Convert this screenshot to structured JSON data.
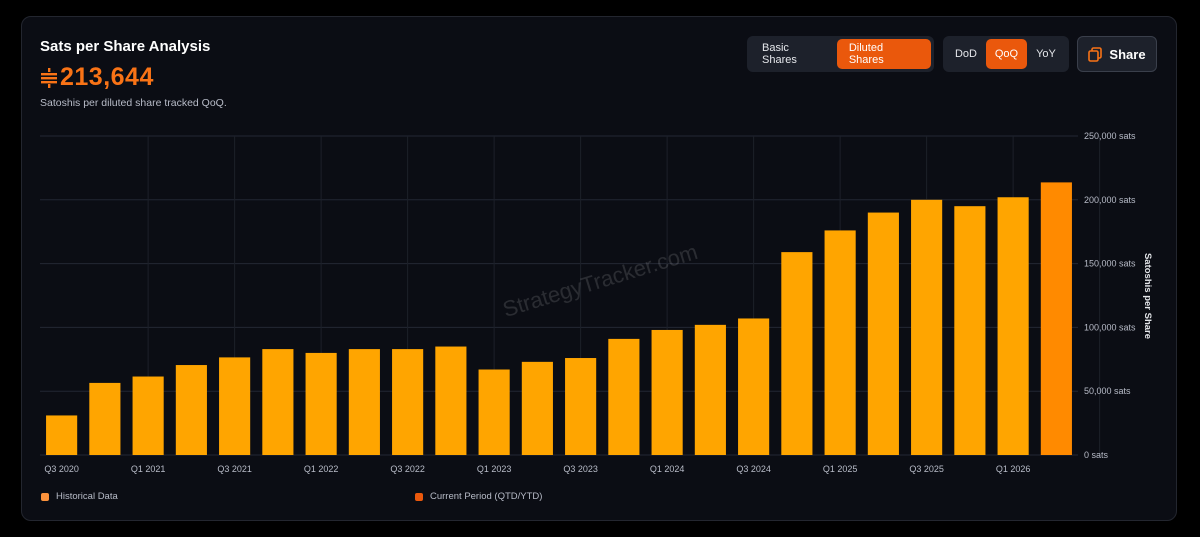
{
  "header": {
    "title": "Sats per Share Analysis",
    "value": "213,644",
    "subtitle": "Satoshis per diluted share tracked QoQ."
  },
  "share_type_toggle": {
    "options": [
      "Basic Shares",
      "Diluted Shares"
    ],
    "selected": "Diluted Shares"
  },
  "period_toggle": {
    "options": [
      "DoD",
      "QoQ",
      "YoY"
    ],
    "selected": "QoQ"
  },
  "share_button": {
    "label": "Share",
    "icon": "copy-icon"
  },
  "watermark": "StrategyTracker.com",
  "colors": {
    "accent": "#f97316",
    "historical_bar": "#ffa500",
    "current_bar": "#ff8a00",
    "legend_historical": "#fb923c",
    "legend_current": "#ea580c"
  },
  "chart_data": {
    "type": "bar",
    "categories": [
      "Q3 2020",
      "Q4 2020",
      "Q1 2021",
      "Q2 2021",
      "Q3 2021",
      "Q4 2021",
      "Q1 2022",
      "Q2 2022",
      "Q3 2022",
      "Q4 2022",
      "Q1 2023",
      "Q2 2023",
      "Q3 2023",
      "Q4 2023",
      "Q1 2024",
      "Q2 2024",
      "Q3 2024",
      "Q4 2024",
      "Q1 2025",
      "Q2 2025",
      "Q3 2025",
      "Q4 2025",
      "Q1 2026",
      "Q2 2026"
    ],
    "x_tick_labels": [
      "Q3 2020",
      "Q1 2021",
      "Q3 2021",
      "Q1 2022",
      "Q3 2022",
      "Q1 2023",
      "Q3 2023",
      "Q1 2024",
      "Q3 2024",
      "Q1 2025",
      "Q3 2025",
      "Q1 2026"
    ],
    "values": [
      31000,
      56500,
      61500,
      70500,
      76500,
      83000,
      80000,
      83000,
      83000,
      85000,
      67000,
      73000,
      76000,
      91000,
      98000,
      102000,
      107000,
      159000,
      176000,
      190000,
      200000,
      195000,
      202000,
      213644
    ],
    "current_index": 23,
    "ylabel": "Satoshis per Share",
    "ylim": [
      0,
      250000
    ],
    "y_ticks": [
      0,
      50000,
      100000,
      150000,
      200000,
      250000
    ],
    "y_tick_labels": [
      "0 sats",
      "50,000 sats",
      "100,000 sats",
      "150,000 sats",
      "200,000 sats",
      "250,000 sats"
    ],
    "grid": true,
    "legend": [
      "Historical Data",
      "Current Period (QTD/YTD)"
    ],
    "legend_placement": "bottom"
  }
}
